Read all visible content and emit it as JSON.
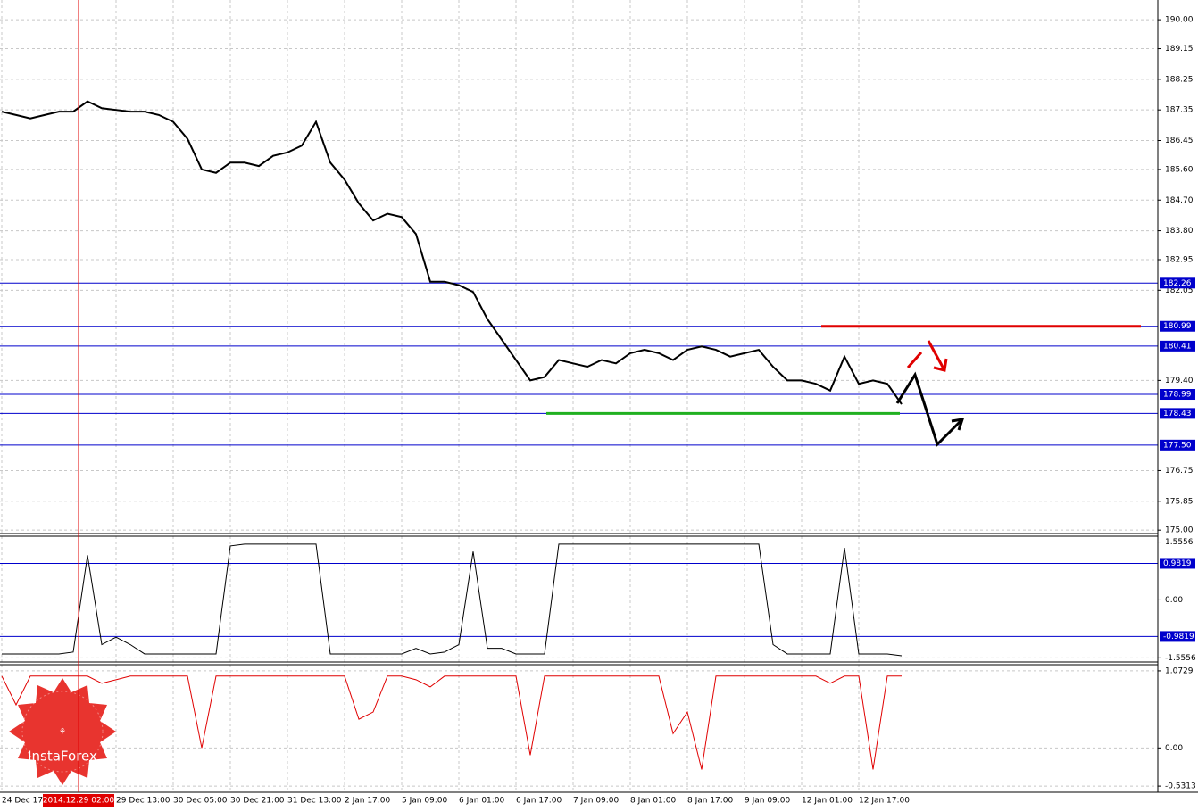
{
  "chart_data": [
    {
      "type": "line",
      "name": "price",
      "color": "#000000",
      "values": [
        187.3,
        187.2,
        187.1,
        187.2,
        187.3,
        187.3,
        187.6,
        187.4,
        187.35,
        187.3,
        187.3,
        187.2,
        187.0,
        186.5,
        185.6,
        185.5,
        185.8,
        185.8,
        185.7,
        186.0,
        186.1,
        186.3,
        187.0,
        185.8,
        185.3,
        184.6,
        184.1,
        184.3,
        184.2,
        183.7,
        182.3,
        182.3,
        182.2,
        182.0,
        181.2,
        180.6,
        180.0,
        179.4,
        179.5,
        180.0,
        179.9,
        179.8,
        180.0,
        179.9,
        180.2,
        180.3,
        180.2,
        180.0,
        180.3,
        180.4,
        180.3,
        180.1,
        180.2,
        180.3,
        179.8,
        179.4,
        179.4,
        179.3,
        179.1,
        180.1,
        179.3,
        179.4,
        179.3,
        178.7
      ],
      "ylim": [
        174.9,
        190.58
      ],
      "yticks": [
        {
          "value": 190,
          "label": "190.00"
        },
        {
          "value": 189.15,
          "label": "189.15"
        },
        {
          "value": 188.25,
          "label": "188.25"
        },
        {
          "value": 187.35,
          "label": "187.35"
        },
        {
          "value": 186.45,
          "label": "186.45"
        },
        {
          "value": 185.6,
          "label": "185.60"
        },
        {
          "value": 184.7,
          "label": "184.70"
        },
        {
          "value": 183.8,
          "label": "183.80"
        },
        {
          "value": 182.95,
          "label": "182.95"
        },
        {
          "value": 182.05,
          "label": "182.05"
        },
        {
          "value": 179.4,
          "label": "179.40"
        },
        {
          "value": 176.75,
          "label": "176.75"
        },
        {
          "value": 175.85,
          "label": "175.85"
        },
        {
          "value": 175,
          "label": "175.00"
        }
      ],
      "levels": [
        182.26,
        180.99,
        180.41,
        178.99,
        178.43,
        {
          "value": 177.5,
          "label": "177.50"
        }
      ],
      "resistance": {
        "value": 180.99,
        "color": "#e00000"
      },
      "support": {
        "value": 178.43,
        "color": "#20b020"
      },
      "grid": true
    },
    {
      "type": "line",
      "name": "indicator-1",
      "color": "#000000",
      "values": [
        -1.45,
        -1.45,
        -1.45,
        -1.45,
        -1.45,
        -1.4,
        1.2,
        -1.2,
        -1.0,
        -1.2,
        -1.45,
        -1.45,
        -1.45,
        -1.45,
        -1.45,
        -1.45,
        1.45,
        1.5,
        1.5,
        1.5,
        1.5,
        1.5,
        1.5,
        -1.45,
        -1.45,
        -1.45,
        -1.45,
        -1.45,
        -1.45,
        -1.3,
        -1.45,
        -1.4,
        -1.2,
        1.3,
        -1.3,
        -1.3,
        -1.45,
        -1.45,
        -1.45,
        1.5,
        1.5,
        1.5,
        1.5,
        1.5,
        1.5,
        1.5,
        1.5,
        1.5,
        1.5,
        1.5,
        1.5,
        1.5,
        1.5,
        1.5,
        -1.2,
        -1.45,
        -1.45,
        -1.45,
        -1.45,
        1.4,
        -1.45,
        -1.45,
        -1.45,
        -1.5
      ],
      "ylim": [
        -1.667,
        1.712
      ],
      "yticks": [
        1.5556,
        {
          "value": 0,
          "label": "0.00"
        },
        -1.5556
      ],
      "levels": [
        0.9819,
        -0.9819
      ],
      "grid": true
    },
    {
      "type": "line",
      "name": "indicator-2",
      "color": "#e00000",
      "values": [
        1.0,
        0.6,
        1.0,
        1.0,
        1.0,
        1.0,
        1.0,
        0.9,
        0.95,
        1.0,
        1.0,
        1.0,
        1.0,
        1.0,
        0.0,
        1.0,
        1.0,
        1.0,
        1.0,
        1.0,
        1.0,
        1.0,
        1.0,
        1.0,
        1.0,
        0.4,
        0.5,
        1.0,
        1.0,
        0.95,
        0.85,
        1.0,
        1.0,
        1.0,
        1.0,
        1.0,
        1.0,
        -0.1,
        1.0,
        1.0,
        1.0,
        1.0,
        1.0,
        1.0,
        1.0,
        1.0,
        1.0,
        0.2,
        0.5,
        -0.3,
        1.0,
        1.0,
        1.0,
        1.0,
        1.0,
        1.0,
        1.0,
        1.0,
        0.9,
        1.0,
        1.0,
        -0.3,
        1.0,
        1.0
      ],
      "ylim": [
        -0.617,
        1.159
      ],
      "yticks": [
        1.0729,
        {
          "value": 0,
          "label": "0.00"
        },
        -0.5313
      ],
      "grid": true
    }
  ],
  "x_labels": [
    "24 Dec 17:",
    "29 Dec 13:00",
    "30 Dec 05:00",
    "30 Dec 21:00",
    "31 Dec 13:00",
    "2 Jan 17:00",
    "5 Jan 09:00",
    "6 Jan 01:00",
    "6 Jan 17:00",
    "7 Jan 09:00",
    "8 Jan 01:00",
    "8 Jan 17:00",
    "9 Jan 09:00",
    "12 Jan 01:00",
    "12 Jan 17:00"
  ],
  "cursor_label": "2014.12.29 02:00",
  "logo": "InstaForex"
}
